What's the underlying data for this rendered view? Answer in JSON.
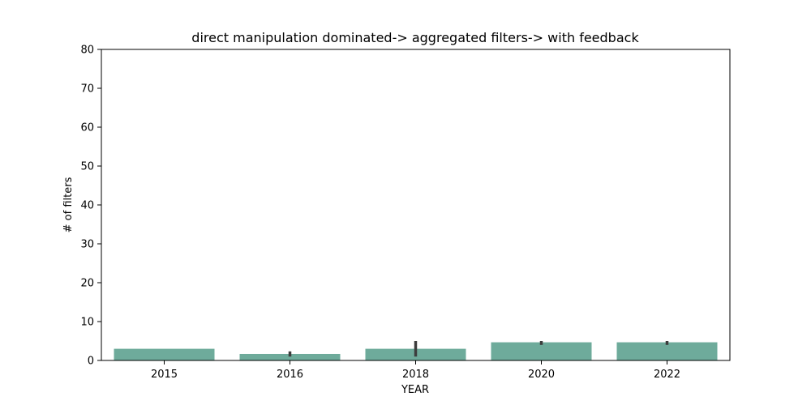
{
  "chart_data": {
    "type": "bar",
    "title": "direct manipulation dominated-> aggregated filters-> with feedback",
    "xlabel": "YEAR",
    "ylabel": "# of filters",
    "categories": [
      "2015",
      "2016",
      "2018",
      "2020",
      "2022"
    ],
    "values": [
      3.0,
      1.67,
      3.0,
      4.67,
      4.67
    ],
    "error_low": [
      3.0,
      1.0,
      1.0,
      4.0,
      4.0
    ],
    "error_high": [
      3.0,
      2.33,
      5.0,
      5.0,
      5.0
    ],
    "ylim": [
      0,
      80
    ],
    "yticks": [
      0,
      10,
      20,
      30,
      40,
      50,
      60,
      70,
      80
    ],
    "grid": false,
    "legend": "none",
    "colors": {
      "bar": "#6eab9b",
      "error_bar": "#3d3d3d",
      "axis": "#000000"
    }
  }
}
